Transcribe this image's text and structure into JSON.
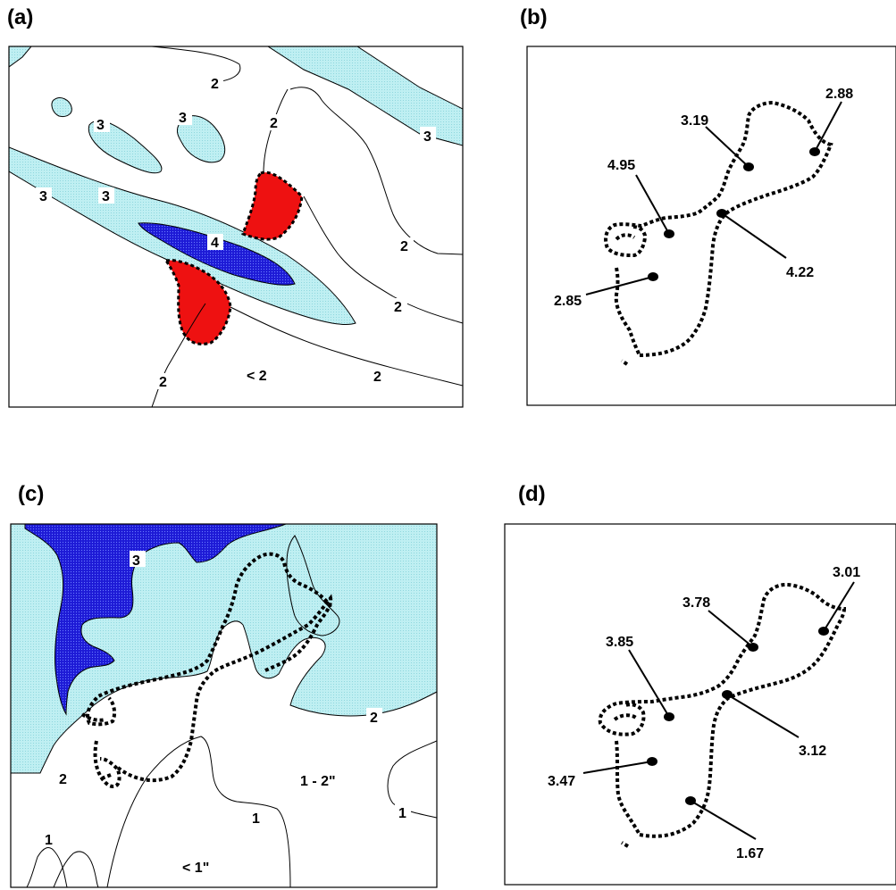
{
  "panels": {
    "a": {
      "label": "(a)",
      "contour_labels": [
        "2",
        "3",
        "3",
        "2",
        "3",
        "3",
        "3",
        "4",
        "2",
        "2",
        "< 2",
        "2",
        "2"
      ]
    },
    "b": {
      "label": "(b)",
      "points": [
        "2.88",
        "3.19",
        "4.95",
        "4.22",
        "2.85"
      ]
    },
    "c": {
      "label": "(c)",
      "contour_labels": [
        "3",
        "2",
        "2",
        "1 - 2\"",
        "1",
        "1",
        "1",
        "< 1\""
      ]
    },
    "d": {
      "label": "(d)",
      "points": [
        "3.01",
        "3.78",
        "3.85",
        "3.12",
        "3.47",
        "1.67"
      ]
    }
  },
  "colors": {
    "light": "#bfeff2",
    "dark": "#1d1ad6",
    "red": "#ee1111",
    "line": "#000000"
  }
}
